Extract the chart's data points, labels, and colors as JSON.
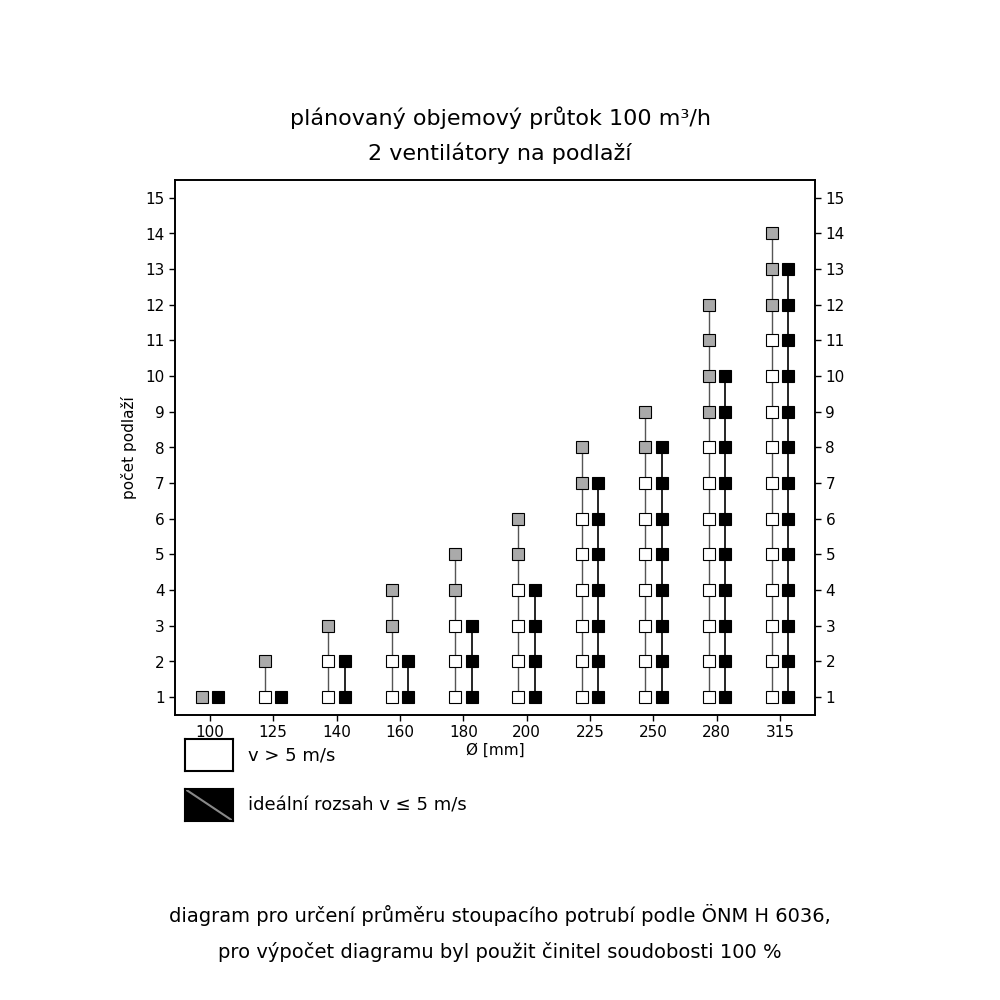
{
  "title_line1": "plánovaný objemový průtok 100 m³/h",
  "title_line2": "2 ventilátory na podlaží",
  "xlabel": "Ø [mm]",
  "ylabel": "počet podlaží",
  "footer_line1": "diagram pro určení průměru stoupacího potrubí podle ÖNM H 6036,",
  "footer_line2": "pro výpočet diagramu byl použit činitel soudobosti 100 %",
  "legend_white": "v > 5 m/s",
  "legend_black": "ideální rozsah v ≤ 5 m/s",
  "diameters": [
    100,
    125,
    140,
    160,
    180,
    200,
    225,
    250,
    280,
    315
  ],
  "white_max": [
    1,
    2,
    3,
    4,
    5,
    6,
    8,
    9,
    12,
    14
  ],
  "black_max": [
    1,
    1,
    2,
    2,
    3,
    4,
    7,
    8,
    10,
    13
  ],
  "gray_start": [
    1,
    2,
    3,
    3,
    4,
    5,
    7,
    8,
    9,
    12
  ],
  "ylim": [
    0.5,
    15.5
  ],
  "yticks": [
    1,
    2,
    3,
    4,
    5,
    6,
    7,
    8,
    9,
    10,
    11,
    12,
    13,
    14,
    15
  ],
  "marker_size": 8,
  "bg_color": "#ffffff",
  "title_color": "#000000",
  "footer_color": "#000000",
  "title_fontsize": 16,
  "tick_fontsize": 11,
  "ylabel_fontsize": 11,
  "xlabel_fontsize": 11,
  "footer_fontsize": 14
}
